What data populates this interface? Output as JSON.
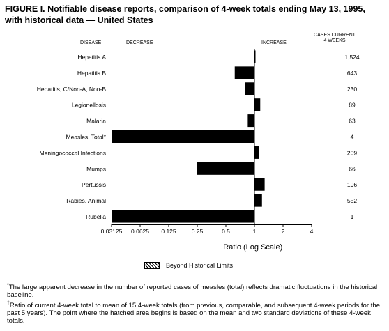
{
  "figure": {
    "title": "FIGURE I. Notifiable disease reports, comparison of 4-week totals ending May 13, 1995, with historical data — United States"
  },
  "headers": {
    "disease": "DISEASE",
    "decrease": "DECREASE",
    "increase": "INCREASE",
    "cases_line1": "CASES CURRENT",
    "cases_line2": "4 WEEKS"
  },
  "legend": {
    "label": "Beyond Historical Limits"
  },
  "footnotes": [
    {
      "mark": "*",
      "text": "The large apparent decrease in the number of reported cases of measles (total) reflects dramatic fluctuations in the historical baseline."
    },
    {
      "mark": "†",
      "text": "Ratio of current 4-week total to mean of 15 4-week totals (from previous, comparable, and subsequent 4-week periods for the past 5 years). The point where the hatched area begins is based on the mean and two standard deviations of these 4-week totals."
    }
  ],
  "chart_data": {
    "type": "bar",
    "orientation": "horizontal",
    "x_scale": "log2",
    "xlabel": "Ratio (Log Scale)",
    "xlabel_mark": "†",
    "xlim": [
      0.03125,
      4
    ],
    "xticks": [
      0.03125,
      0.0625,
      0.125,
      0.25,
      0.5,
      1,
      2,
      4
    ],
    "xtick_labels": [
      "0.03125",
      "0.0625",
      "0.125",
      "0.25",
      "0.5",
      "1",
      "2",
      "4"
    ],
    "baseline": 1,
    "categories": [
      "Hepatitis A",
      "Hepatitis B",
      "Hepatitis, C/Non-A, Non-B",
      "Legionellosis",
      "Malaria",
      "Measles, Total*",
      "Meningococcal Infections",
      "Mumps",
      "Pertussis",
      "Rabies, Animal",
      "Rubella"
    ],
    "values": [
      1.02,
      0.62,
      0.8,
      1.15,
      0.85,
      0.03125,
      1.12,
      0.25,
      1.28,
      1.2,
      0.03125
    ],
    "cases_current_4_weeks": [
      "1,524",
      "643",
      "230",
      "89",
      "63",
      "4",
      "209",
      "66",
      "196",
      "552",
      "1"
    ],
    "bar_color": "#000000"
  }
}
